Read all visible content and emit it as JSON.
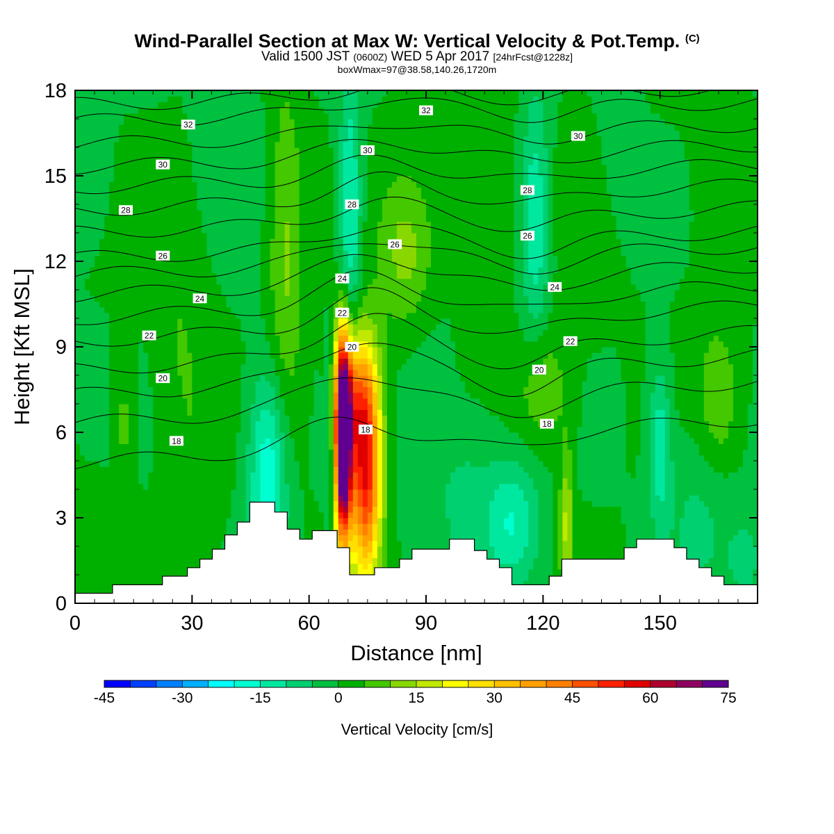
{
  "header": {
    "title_main": "Wind-Parallel Section at Max W: Vertical Velocity & Pot.Temp.",
    "title_copyright": "(C)",
    "subtitle_a": "Valid 1500 JST",
    "subtitle_utc": "(0600Z)",
    "subtitle_b": "WED 5 Apr 2017",
    "subtitle_fcst": "[24hrFcst@1228z]",
    "subtitle_box": "boxWmax=97@38.58,140.26,1720m"
  },
  "chart_data": {
    "type": "heatmap",
    "title": "Wind-Parallel Section at Max W: Vertical Velocity & Pot.Temp.",
    "xlabel": "Distance [nm]",
    "ylabel": "Height [Kft MSL]",
    "xlim": [
      0,
      175
    ],
    "ylim": [
      0,
      18
    ],
    "xticks": [
      "0",
      "30",
      "60",
      "90",
      "120",
      "150"
    ],
    "yticks": [
      "0",
      "3",
      "6",
      "9",
      "12",
      "15",
      "18"
    ],
    "colorbar": {
      "label": "Vertical Velocity [cm/s]",
      "min": -45,
      "max": 80,
      "step": 5,
      "tick_labels": [
        "-45",
        "-30",
        "-15",
        "0",
        "15",
        "30",
        "45",
        "60",
        "75"
      ],
      "colors": [
        "#0000ff",
        "#0040ff",
        "#0080ff",
        "#00b0ff",
        "#00ffff",
        "#00ffd0",
        "#00e8a0",
        "#00d070",
        "#00c040",
        "#00b000",
        "#44c800",
        "#88d800",
        "#c0e800",
        "#ffff00",
        "#ffe000",
        "#ffc000",
        "#ffa000",
        "#ff8000",
        "#ff5000",
        "#ff2000",
        "#e00000",
        "#b00030",
        "#900060",
        "#600090"
      ]
    },
    "terrain_kft": [
      [
        0,
        0.35
      ],
      [
        9.6,
        0.35
      ],
      [
        9.6,
        0.65
      ],
      [
        22.4,
        0.65
      ],
      [
        22.4,
        0.95
      ],
      [
        28.8,
        0.95
      ],
      [
        28.8,
        1.25
      ],
      [
        32,
        1.25
      ],
      [
        32,
        1.55
      ],
      [
        35.2,
        1.55
      ],
      [
        35.2,
        1.9
      ],
      [
        38.4,
        1.9
      ],
      [
        38.4,
        2.4
      ],
      [
        41.6,
        2.4
      ],
      [
        41.6,
        2.85
      ],
      [
        44.8,
        2.85
      ],
      [
        44.8,
        3.55
      ],
      [
        51.2,
        3.55
      ],
      [
        51.2,
        3.2
      ],
      [
        54.4,
        3.2
      ],
      [
        54.4,
        2.6
      ],
      [
        57.6,
        2.6
      ],
      [
        57.6,
        2.25
      ],
      [
        60.8,
        2.25
      ],
      [
        60.8,
        2.55
      ],
      [
        67.2,
        2.55
      ],
      [
        67.2,
        1.95
      ],
      [
        70.4,
        1.95
      ],
      [
        70.4,
        1.0
      ],
      [
        76.8,
        1.0
      ],
      [
        76.8,
        1.25
      ],
      [
        83.2,
        1.25
      ],
      [
        83.2,
        1.55
      ],
      [
        86.4,
        1.55
      ],
      [
        86.4,
        1.9
      ],
      [
        96,
        1.9
      ],
      [
        96,
        2.25
      ],
      [
        102.4,
        2.25
      ],
      [
        102.4,
        1.85
      ],
      [
        105.6,
        1.85
      ],
      [
        105.6,
        1.55
      ],
      [
        108.8,
        1.55
      ],
      [
        108.8,
        1.25
      ],
      [
        112,
        1.25
      ],
      [
        112,
        0.65
      ],
      [
        121.6,
        0.65
      ],
      [
        121.6,
        0.95
      ],
      [
        124.8,
        0.95
      ],
      [
        124.8,
        1.55
      ],
      [
        140.8,
        1.55
      ],
      [
        140.8,
        1.95
      ],
      [
        144,
        1.95
      ],
      [
        144,
        2.25
      ],
      [
        153.6,
        2.25
      ],
      [
        153.6,
        1.95
      ],
      [
        156.8,
        1.95
      ],
      [
        156.8,
        1.55
      ],
      [
        160,
        1.55
      ],
      [
        160,
        1.25
      ],
      [
        163.2,
        1.25
      ],
      [
        163.2,
        0.95
      ],
      [
        166.4,
        0.95
      ],
      [
        166.4,
        0.65
      ],
      [
        175,
        0.65
      ]
    ],
    "w_features": [
      {
        "x": 68.6,
        "z": 5.8,
        "sx": 1.6,
        "sz": 2.5,
        "w": 97
      },
      {
        "x": 74.5,
        "z": 4.6,
        "sx": 2.8,
        "sz": 2.6,
        "w": 55
      },
      {
        "x": 72.0,
        "z": 7.5,
        "sx": 3.5,
        "sz": 1.6,
        "w": 25
      },
      {
        "x": 66.2,
        "z": 5.8,
        "sx": 1.2,
        "sz": 2.6,
        "w": -15
      },
      {
        "x": 49.5,
        "z": 4.5,
        "sx": 3.5,
        "sz": 2.6,
        "w": -20
      },
      {
        "x": 70.5,
        "z": 13.5,
        "sx": 2.0,
        "sz": 3.5,
        "w": -17
      },
      {
        "x": 54,
        "z": 12,
        "sx": 3.2,
        "sz": 4.5,
        "w": 11
      },
      {
        "x": 85,
        "z": 12.3,
        "sx": 5,
        "sz": 2,
        "w": 12
      },
      {
        "x": 118,
        "z": 13.5,
        "sx": 2.5,
        "sz": 3,
        "w": -15
      },
      {
        "x": 112,
        "z": 2.8,
        "sx": 5,
        "sz": 1.6,
        "w": -15
      },
      {
        "x": 120,
        "z": 7.5,
        "sx": 5,
        "sz": 1.6,
        "w": 10
      },
      {
        "x": 126,
        "z": 2.8,
        "sx": 1.2,
        "sz": 1.8,
        "w": 16
      },
      {
        "x": 150,
        "z": 5.5,
        "sx": 2,
        "sz": 2,
        "w": -14
      },
      {
        "x": 165,
        "z": 7.2,
        "sx": 3.5,
        "sz": 1.7,
        "w": 9
      },
      {
        "x": 12.5,
        "z": 6.5,
        "sx": 1.8,
        "sz": 2.5,
        "w": 7
      },
      {
        "x": 30,
        "z": 6,
        "sx": 5,
        "sz": 5,
        "w": 4
      },
      {
        "x": 25,
        "z": 10,
        "sx": 4,
        "sz": 3,
        "w": 3
      },
      {
        "x": 5,
        "z": 16,
        "sx": 3,
        "sz": 2,
        "w": -4
      },
      {
        "x": 40,
        "z": 16.5,
        "sx": 6,
        "sz": 3,
        "w": -3
      },
      {
        "x": 134,
        "z": 14,
        "sx": 6,
        "sz": 3,
        "w": 3
      },
      {
        "x": 138,
        "z": 16,
        "sx": 4,
        "sz": 3,
        "w": -4
      },
      {
        "x": 163,
        "z": 14,
        "sx": 6,
        "sz": 3,
        "w": 2
      },
      {
        "x": 160,
        "z": 3,
        "sx": 6,
        "sz": 2,
        "w": -6
      },
      {
        "x": 172,
        "z": 1.5,
        "sx": 3,
        "sz": 1,
        "w": -8
      },
      {
        "x": 100,
        "z": 3.8,
        "sx": 5,
        "sz": 2,
        "w": -6
      },
      {
        "x": 90,
        "z": 7,
        "sx": 5,
        "sz": 3,
        "w": -4
      },
      {
        "x": 5,
        "z": 2.5,
        "sx": 4,
        "sz": 1.2,
        "w": 4
      },
      {
        "x": 103,
        "z": 15,
        "sx": 8,
        "sz": 3,
        "w": 3
      }
    ],
    "theta_contours": [
      {
        "level": 18,
        "base_z": 4.9,
        "slope": 0.009,
        "amp": 0.9,
        "cx": 70
      },
      {
        "level": 19,
        "base_z": 6.3,
        "slope": 0.0085,
        "amp": 1.2,
        "cx": 72
      },
      {
        "level": 20,
        "base_z": 7.3,
        "slope": 0.008,
        "amp": 1.4,
        "cx": 73
      },
      {
        "level": 21,
        "base_z": 8.2,
        "slope": 0.0075,
        "amp": 1.3,
        "cx": 74
      },
      {
        "level": 22,
        "base_z": 9.2,
        "slope": 0.007,
        "amp": 1.1,
        "cx": 75
      },
      {
        "level": 23,
        "base_z": 10.0,
        "slope": 0.0065,
        "amp": 1.0,
        "cx": 75
      },
      {
        "level": 24,
        "base_z": 10.8,
        "slope": 0.006,
        "amp": 1.0,
        "cx": 76
      },
      {
        "level": 25,
        "base_z": 11.5,
        "slope": 0.006,
        "amp": 0.9,
        "cx": 76
      },
      {
        "level": 26,
        "base_z": 12.1,
        "slope": 0.0055,
        "amp": 0.8,
        "cx": 77
      },
      {
        "level": 27,
        "base_z": 13.0,
        "slope": 0.005,
        "amp": 0.7,
        "cx": 77
      },
      {
        "level": 28,
        "base_z": 13.8,
        "slope": 0.005,
        "amp": 0.7,
        "cx": 78
      },
      {
        "level": 29,
        "base_z": 14.6,
        "slope": 0.0045,
        "amp": 0.6,
        "cx": 78
      },
      {
        "level": 30,
        "base_z": 15.3,
        "slope": 0.0045,
        "amp": 0.6,
        "cx": 78
      },
      {
        "level": 31,
        "base_z": 16.1,
        "slope": 0.004,
        "amp": 0.5,
        "cx": 78
      },
      {
        "level": 32,
        "base_z": 16.9,
        "slope": 0.004,
        "amp": 0.5,
        "cx": 78
      },
      {
        "level": 33,
        "base_z": 17.5,
        "slope": 0.0035,
        "amp": 0.4,
        "cx": 78
      }
    ],
    "contour_labels": [
      {
        "text": "32",
        "x": 29,
        "z": 16.8
      },
      {
        "text": "32",
        "x": 90,
        "z": 17.3
      },
      {
        "text": "30",
        "x": 22.5,
        "z": 15.4
      },
      {
        "text": "30",
        "x": 75,
        "z": 15.9
      },
      {
        "text": "30",
        "x": 129,
        "z": 16.4
      },
      {
        "text": "28",
        "x": 13,
        "z": 13.8
      },
      {
        "text": "28",
        "x": 71,
        "z": 14.0
      },
      {
        "text": "28",
        "x": 116,
        "z": 14.5
      },
      {
        "text": "26",
        "x": 82,
        "z": 12.6
      },
      {
        "text": "26",
        "x": 22.5,
        "z": 12.2
      },
      {
        "text": "26",
        "x": 116,
        "z": 12.9
      },
      {
        "text": "24",
        "x": 32,
        "z": 10.7
      },
      {
        "text": "24",
        "x": 68.5,
        "z": 11.4
      },
      {
        "text": "24",
        "x": 123,
        "z": 11.1
      },
      {
        "text": "22",
        "x": 19,
        "z": 9.4
      },
      {
        "text": "22",
        "x": 68.5,
        "z": 10.2
      },
      {
        "text": "22",
        "x": 127,
        "z": 9.2
      },
      {
        "text": "20",
        "x": 22.5,
        "z": 7.9
      },
      {
        "text": "20",
        "x": 71,
        "z": 9.0
      },
      {
        "text": "20",
        "x": 119,
        "z": 8.2
      },
      {
        "text": "18",
        "x": 26,
        "z": 5.7
      },
      {
        "text": "18",
        "x": 74.5,
        "z": 6.1
      },
      {
        "text": "18",
        "x": 121,
        "z": 6.3
      }
    ]
  }
}
